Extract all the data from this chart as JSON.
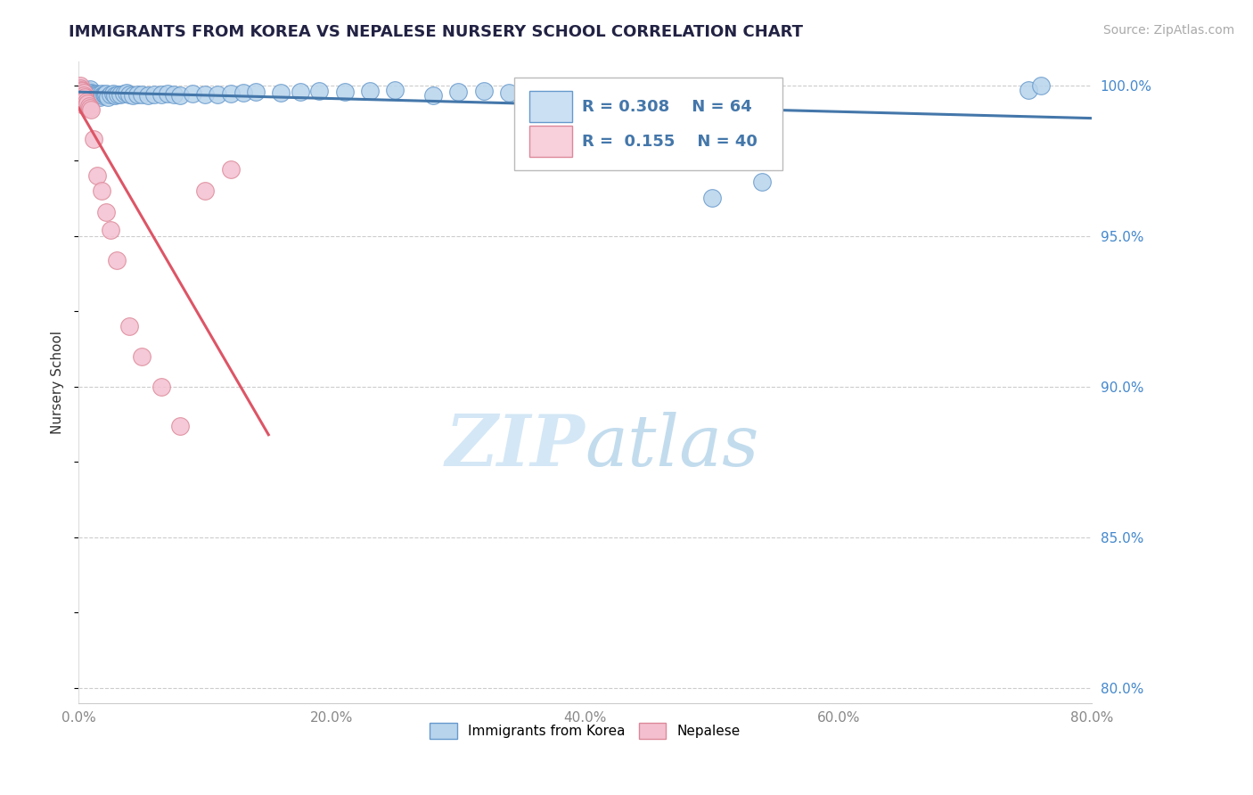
{
  "title": "IMMIGRANTS FROM KOREA VS NEPALESE NURSERY SCHOOL CORRELATION CHART",
  "source_text": "Source: ZipAtlas.com",
  "ylabel": "Nursery School",
  "xlim": [
    0.0,
    0.8
  ],
  "ylim": [
    0.795,
    1.008
  ],
  "xtick_labels": [
    "0.0%",
    "",
    "20.0%",
    "",
    "40.0%",
    "",
    "60.0%",
    "",
    "80.0%"
  ],
  "xtick_vals": [
    0.0,
    0.1,
    0.2,
    0.3,
    0.4,
    0.5,
    0.6,
    0.7,
    0.8
  ],
  "ytick_labels": [
    "100.0%",
    "95.0%",
    "90.0%",
    "85.0%",
    "80.0%"
  ],
  "ytick_vals": [
    1.0,
    0.95,
    0.9,
    0.85,
    0.8
  ],
  "blue_R": 0.308,
  "blue_N": 64,
  "pink_R": 0.155,
  "pink_N": 40,
  "blue_color": "#b8d4ec",
  "blue_edge": "#6699cc",
  "pink_color": "#f4c0d0",
  "pink_edge": "#dd8899",
  "blue_line_color": "#4477aa",
  "pink_line_color": "#dd5566",
  "legend_blue_fill": "#cce0f4",
  "legend_pink_fill": "#f8d0dc",
  "title_color": "#222244",
  "blue_x": [
    0.002,
    0.003,
    0.004,
    0.005,
    0.006,
    0.007,
    0.008,
    0.009,
    0.01,
    0.01,
    0.011,
    0.012,
    0.013,
    0.014,
    0.015,
    0.016,
    0.017,
    0.018,
    0.019,
    0.02,
    0.021,
    0.022,
    0.023,
    0.025,
    0.027,
    0.029,
    0.031,
    0.033,
    0.036,
    0.038,
    0.04,
    0.043,
    0.046,
    0.05,
    0.055,
    0.06,
    0.065,
    0.07,
    0.075,
    0.08,
    0.09,
    0.1,
    0.11,
    0.12,
    0.13,
    0.14,
    0.16,
    0.175,
    0.19,
    0.21,
    0.23,
    0.25,
    0.28,
    0.3,
    0.32,
    0.34,
    0.36,
    0.38,
    0.41,
    0.43,
    0.5,
    0.54,
    0.75,
    0.76
  ],
  "blue_y": [
    0.9985,
    0.999,
    0.998,
    0.9975,
    0.9985,
    0.9978,
    0.9982,
    0.9988,
    0.997,
    0.9975,
    0.9972,
    0.9968,
    0.9965,
    0.9972,
    0.997,
    0.9968,
    0.996,
    0.9972,
    0.9965,
    0.997,
    0.9968,
    0.9972,
    0.996,
    0.9968,
    0.9972,
    0.9965,
    0.997,
    0.9968,
    0.9972,
    0.9975,
    0.9968,
    0.9965,
    0.997,
    0.9968,
    0.9965,
    0.9968,
    0.997,
    0.9972,
    0.9968,
    0.9965,
    0.9972,
    0.9968,
    0.997,
    0.9972,
    0.9975,
    0.9978,
    0.9975,
    0.9978,
    0.998,
    0.9978,
    0.9982,
    0.9985,
    0.9965,
    0.9978,
    0.998,
    0.9975,
    0.996,
    0.9972,
    0.9975,
    0.998,
    0.9625,
    0.968,
    0.9985,
    1.0
  ],
  "pink_x": [
    0.001,
    0.001,
    0.001,
    0.001,
    0.001,
    0.002,
    0.002,
    0.002,
    0.002,
    0.002,
    0.003,
    0.003,
    0.003,
    0.003,
    0.003,
    0.004,
    0.004,
    0.004,
    0.004,
    0.004,
    0.005,
    0.005,
    0.006,
    0.006,
    0.007,
    0.008,
    0.009,
    0.01,
    0.012,
    0.015,
    0.018,
    0.022,
    0.025,
    0.03,
    0.04,
    0.05,
    0.065,
    0.08,
    0.1,
    0.12
  ],
  "pink_y": [
    1.0,
    0.999,
    0.998,
    0.997,
    0.996,
    0.9985,
    0.9975,
    0.9965,
    0.9955,
    0.9945,
    0.998,
    0.997,
    0.996,
    0.995,
    0.994,
    0.9975,
    0.9965,
    0.9955,
    0.9945,
    0.9935,
    0.996,
    0.995,
    0.9945,
    0.9935,
    0.994,
    0.993,
    0.9925,
    0.992,
    0.982,
    0.97,
    0.965,
    0.958,
    0.952,
    0.942,
    0.92,
    0.91,
    0.9,
    0.887,
    0.965,
    0.972
  ]
}
